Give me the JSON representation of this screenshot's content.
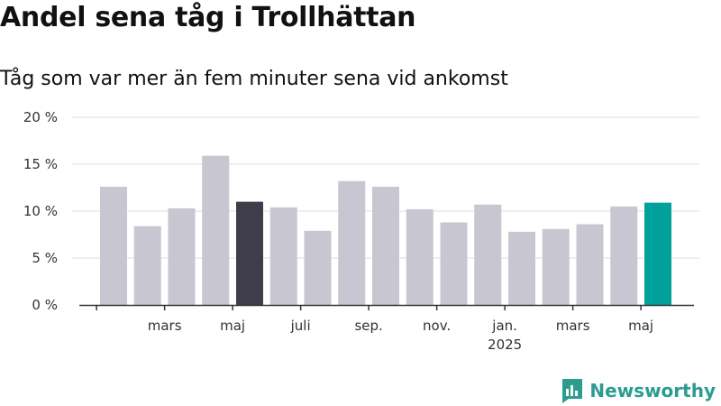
{
  "title": "Andel sena tåg i Trollhättan",
  "subtitle": "Tåg som var mer än fem minuter sena vid ankomst",
  "brand": {
    "name": "Newsworthy",
    "icon": "bar-chart-logo-icon"
  },
  "colors": {
    "bar": "#c8c7d1",
    "bar_highlight_dark": "#3f3d49",
    "bar_highlight_teal": "#00a19a",
    "grid": "#dddddd",
    "axis": "#333333",
    "brand": "#2a9d8f"
  },
  "chart_data": {
    "type": "bar",
    "title": "Andel sena tåg i Trollhättan",
    "subtitle": "Tåg som var mer än fem minuter sena vid ankomst",
    "y_ticks": [
      "0 %",
      "5 %",
      "10 %",
      "15 %",
      "20 %"
    ],
    "ylim": [
      0,
      20
    ],
    "grid": true,
    "x_tick_labels": [
      {
        "after_bar": 1,
        "label": "mars",
        "sublabel": ""
      },
      {
        "after_bar": 3,
        "label": "maj",
        "sublabel": ""
      },
      {
        "after_bar": 5,
        "label": "juli",
        "sublabel": ""
      },
      {
        "after_bar": 7,
        "label": "sep.",
        "sublabel": ""
      },
      {
        "after_bar": 9,
        "label": "nov.",
        "sublabel": ""
      },
      {
        "after_bar": 11,
        "label": "jan.",
        "sublabel": "2025"
      },
      {
        "after_bar": 13,
        "label": "mars",
        "sublabel": ""
      },
      {
        "after_bar": 15,
        "label": "maj",
        "sublabel": ""
      }
    ],
    "values": [
      12.6,
      8.4,
      10.3,
      15.9,
      11.0,
      10.4,
      7.9,
      13.2,
      12.6,
      10.2,
      8.8,
      10.7,
      7.8,
      8.1,
      8.6,
      10.5,
      10.9
    ],
    "highlight": {
      "4": "dark",
      "16": "teal"
    }
  }
}
